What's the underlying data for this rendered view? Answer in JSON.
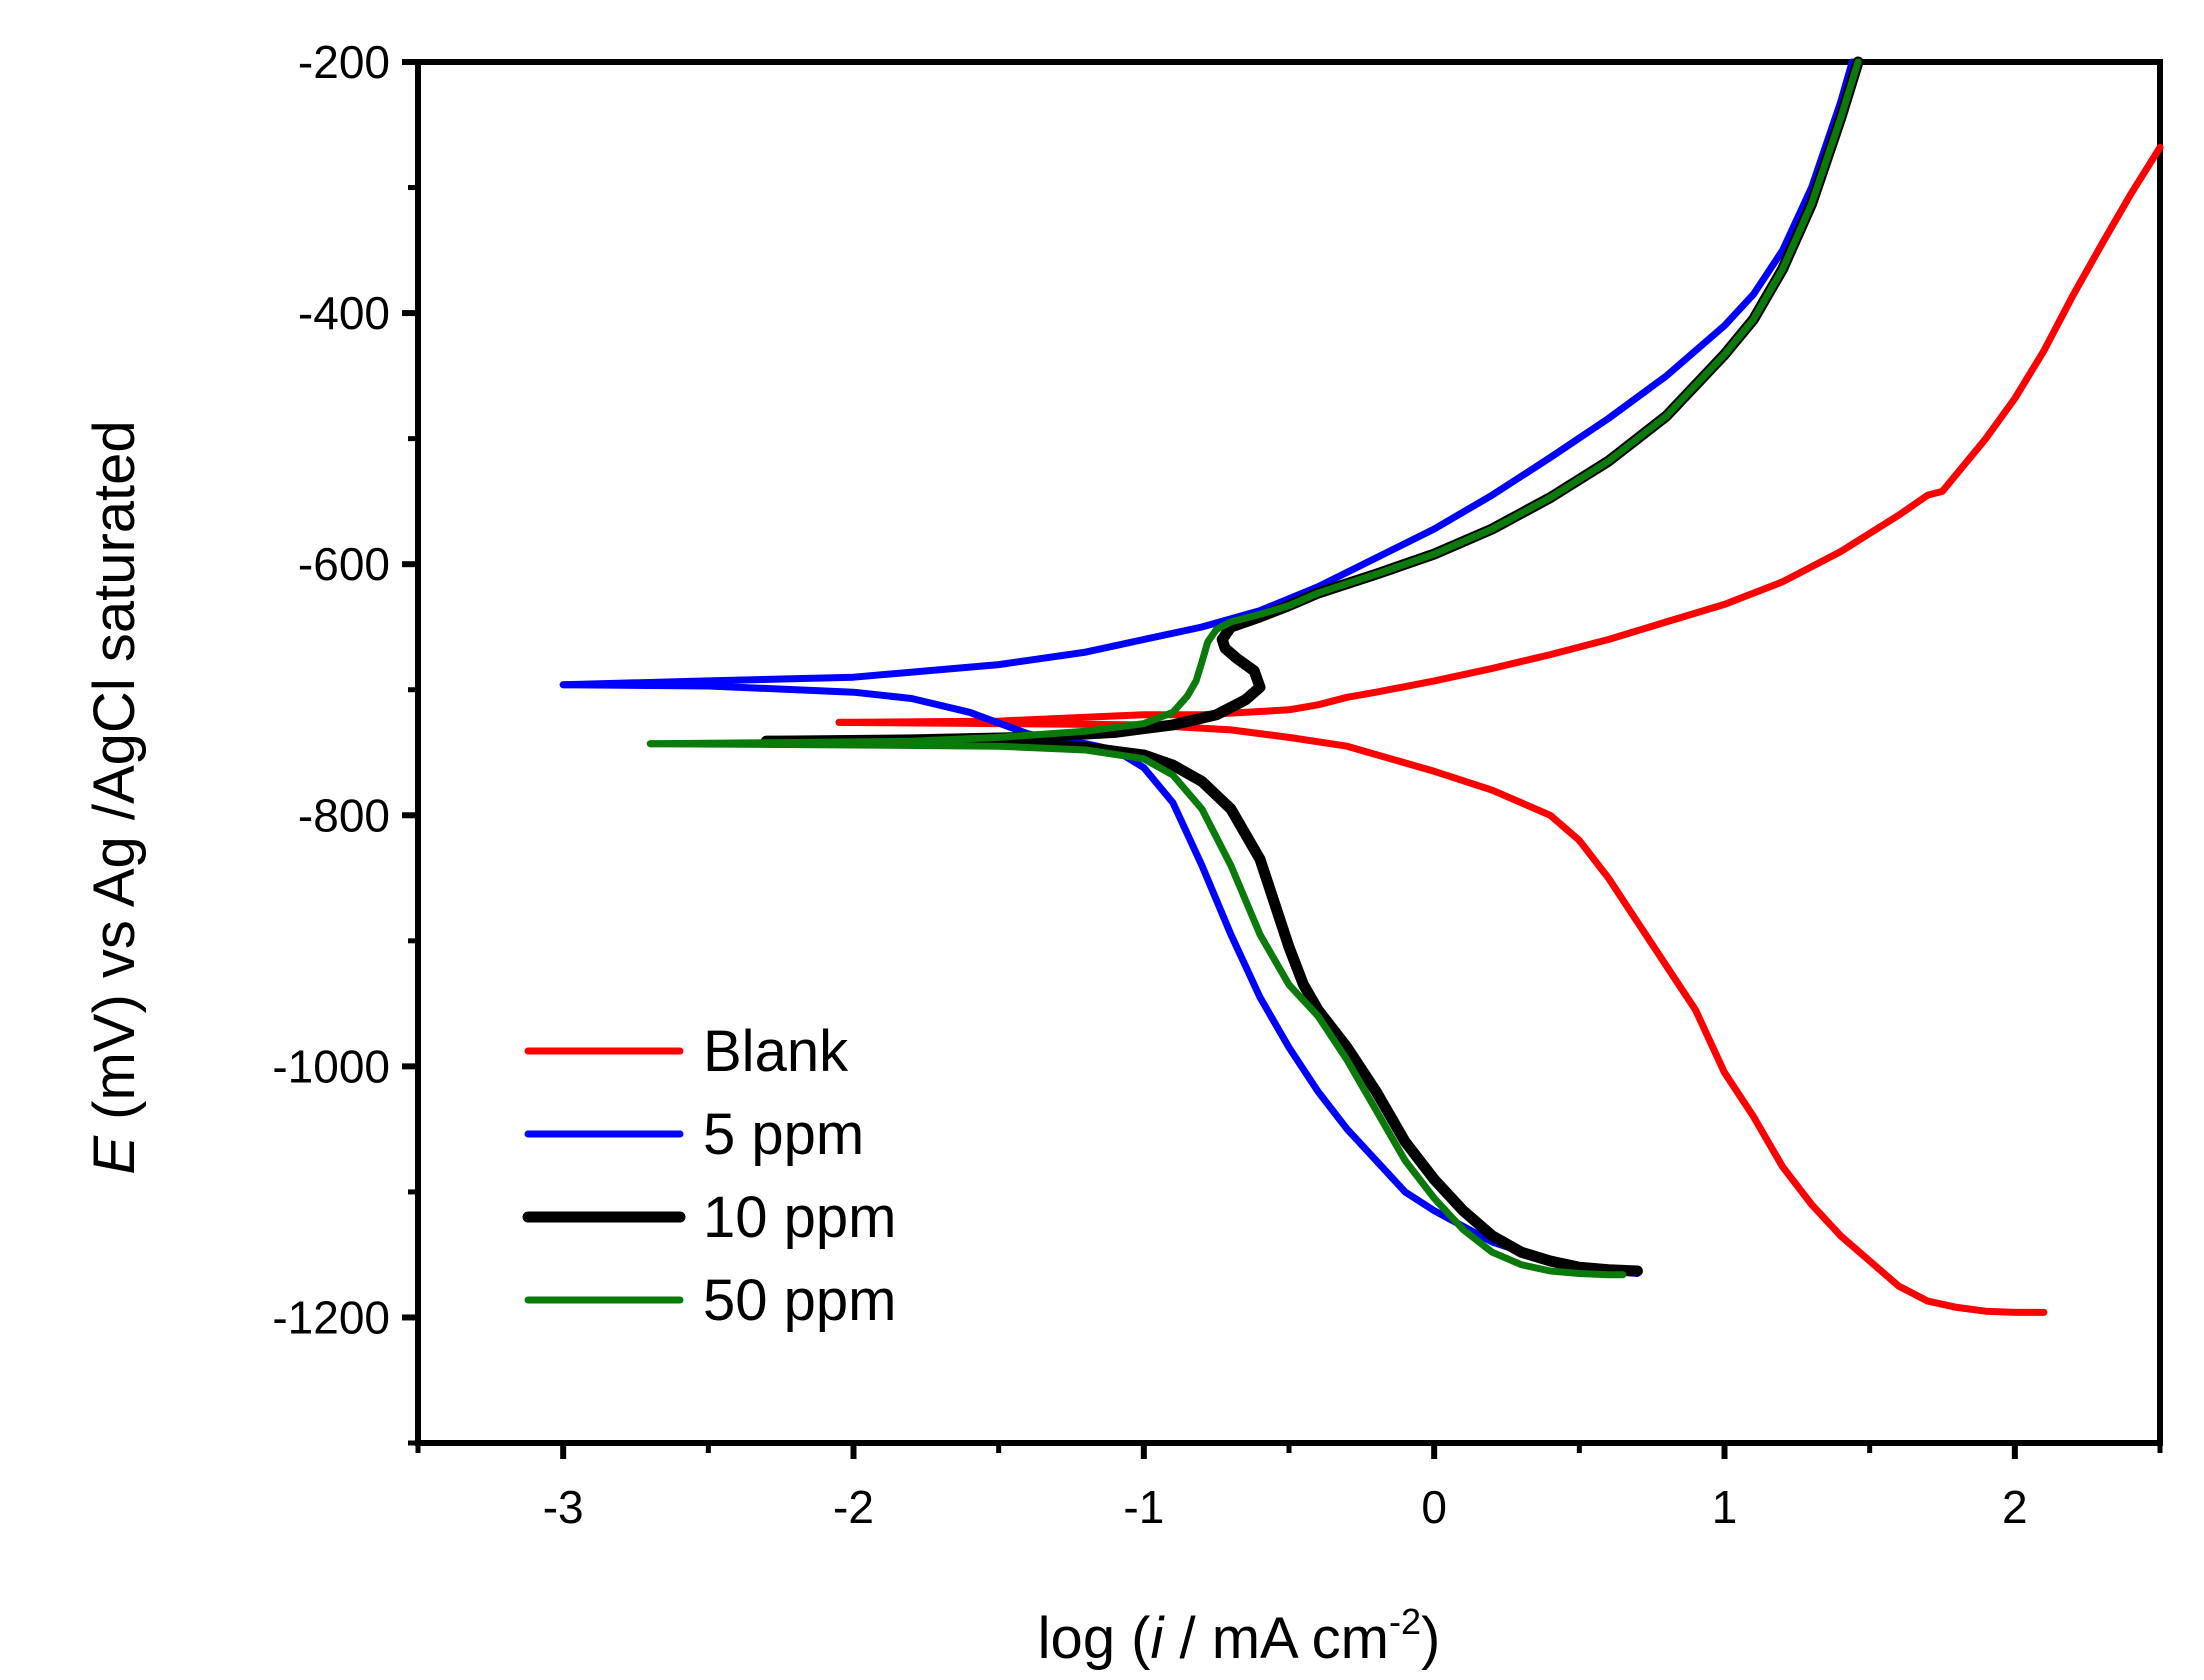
{
  "chart_data": {
    "type": "line",
    "title": "",
    "xlabel": {
      "prefix": "log (",
      "italic": "i",
      "suffix": " / mA cm",
      "sup": "-2",
      "close": ")"
    },
    "ylabel": {
      "italic": "E",
      "rest": " (mV) vs Ag /AgCl saturated"
    },
    "xlim": [
      -3.5,
      2.5
    ],
    "ylim": [
      -1300,
      -200
    ],
    "xticks": [
      -3,
      -2,
      -1,
      0,
      1,
      2
    ],
    "xtick_labels": [
      "-3",
      "-2",
      "-1",
      "0",
      "1",
      "2"
    ],
    "yticks": [
      -200,
      -400,
      -600,
      -800,
      -1000,
      -1200
    ],
    "ytick_labels": [
      "-200",
      "-400",
      "-600",
      "-800",
      "-1000",
      "-1200"
    ],
    "grid": false,
    "legend_position": "bottom-left",
    "series": [
      {
        "name": "Blank",
        "color": "#ff0000",
        "line_width": "medium",
        "anodic": [
          [
            -2.05,
            -726
          ],
          [
            -1.5,
            -725
          ],
          [
            -1.2,
            -722
          ],
          [
            -1.0,
            -720
          ],
          [
            -0.8,
            -720
          ],
          [
            -0.5,
            -716
          ],
          [
            -0.4,
            -712
          ],
          [
            -0.3,
            -706
          ],
          [
            -0.2,
            -702
          ],
          [
            0.0,
            -693
          ],
          [
            0.2,
            -683
          ],
          [
            0.4,
            -672
          ],
          [
            0.6,
            -660
          ],
          [
            0.8,
            -646
          ],
          [
            1.0,
            -632
          ],
          [
            1.2,
            -614
          ],
          [
            1.4,
            -590
          ],
          [
            1.6,
            -561
          ],
          [
            1.7,
            -545
          ],
          [
            1.75,
            -542
          ],
          [
            1.8,
            -528
          ],
          [
            1.9,
            -500
          ],
          [
            2.0,
            -468
          ],
          [
            2.1,
            -430
          ],
          [
            2.2,
            -386
          ],
          [
            2.3,
            -345
          ],
          [
            2.4,
            -305
          ],
          [
            2.5,
            -268
          ]
        ],
        "cathodic": [
          [
            -2.05,
            -726
          ],
          [
            -1.5,
            -727
          ],
          [
            -1.0,
            -728
          ],
          [
            -0.7,
            -732
          ],
          [
            -0.5,
            -738
          ],
          [
            -0.3,
            -745
          ],
          [
            0.0,
            -765
          ],
          [
            0.2,
            -780
          ],
          [
            0.4,
            -800
          ],
          [
            0.5,
            -820
          ],
          [
            0.6,
            -850
          ],
          [
            0.7,
            -885
          ],
          [
            0.8,
            -920
          ],
          [
            0.9,
            -955
          ],
          [
            1.0,
            -1005
          ],
          [
            1.1,
            -1040
          ],
          [
            1.2,
            -1080
          ],
          [
            1.3,
            -1110
          ],
          [
            1.4,
            -1135
          ],
          [
            1.5,
            -1155
          ],
          [
            1.6,
            -1175
          ],
          [
            1.7,
            -1187
          ],
          [
            1.8,
            -1192
          ],
          [
            1.9,
            -1195
          ],
          [
            2.0,
            -1196
          ],
          [
            2.1,
            -1196
          ]
        ]
      },
      {
        "name": "5 ppm",
        "color": "#0000ff",
        "line_width": "medium",
        "anodic": [
          [
            -3.0,
            -696
          ],
          [
            -2.5,
            -693
          ],
          [
            -2.0,
            -690
          ],
          [
            -1.5,
            -680
          ],
          [
            -1.2,
            -670
          ],
          [
            -1.0,
            -660
          ],
          [
            -0.8,
            -650
          ],
          [
            -0.6,
            -637
          ],
          [
            -0.4,
            -618
          ],
          [
            -0.2,
            -595
          ],
          [
            0.0,
            -572
          ],
          [
            0.2,
            -545
          ],
          [
            0.4,
            -515
          ],
          [
            0.6,
            -484
          ],
          [
            0.8,
            -450
          ],
          [
            1.0,
            -410
          ],
          [
            1.1,
            -385
          ],
          [
            1.2,
            -350
          ],
          [
            1.3,
            -300
          ],
          [
            1.4,
            -232
          ],
          [
            1.44,
            -200
          ]
        ],
        "cathodic": [
          [
            -3.0,
            -696
          ],
          [
            -2.5,
            -697
          ],
          [
            -2.0,
            -702
          ],
          [
            -1.8,
            -707
          ],
          [
            -1.6,
            -718
          ],
          [
            -1.4,
            -735
          ],
          [
            -1.3,
            -740
          ],
          [
            -1.2,
            -743
          ],
          [
            -1.1,
            -748
          ],
          [
            -1.0,
            -762
          ],
          [
            -0.9,
            -790
          ],
          [
            -0.8,
            -840
          ],
          [
            -0.7,
            -895
          ],
          [
            -0.6,
            -945
          ],
          [
            -0.5,
            -985
          ],
          [
            -0.4,
            -1020
          ],
          [
            -0.3,
            -1050
          ],
          [
            -0.2,
            -1075
          ],
          [
            -0.1,
            -1100
          ],
          [
            0.0,
            -1115
          ],
          [
            0.2,
            -1140
          ],
          [
            0.4,
            -1155
          ],
          [
            0.6,
            -1163
          ],
          [
            0.7,
            -1165
          ]
        ]
      },
      {
        "name": "10 ppm",
        "color": "#000000",
        "line_width": "thick",
        "anodic": [
          [
            -2.3,
            -741
          ],
          [
            -1.8,
            -740
          ],
          [
            -1.4,
            -738
          ],
          [
            -1.1,
            -734
          ],
          [
            -0.9,
            -728
          ],
          [
            -0.75,
            -720
          ],
          [
            -0.65,
            -708
          ],
          [
            -0.6,
            -698
          ],
          [
            -0.62,
            -685
          ],
          [
            -0.68,
            -675
          ],
          [
            -0.72,
            -667
          ],
          [
            -0.73,
            -660
          ],
          [
            -0.7,
            -650
          ],
          [
            -0.6,
            -642
          ],
          [
            -0.5,
            -633
          ],
          [
            -0.4,
            -623
          ],
          [
            -0.2,
            -608
          ],
          [
            0.0,
            -592
          ],
          [
            0.2,
            -572
          ],
          [
            0.4,
            -547
          ],
          [
            0.6,
            -518
          ],
          [
            0.8,
            -482
          ],
          [
            1.0,
            -433
          ],
          [
            1.1,
            -405
          ],
          [
            1.2,
            -365
          ],
          [
            1.3,
            -313
          ],
          [
            1.4,
            -245
          ],
          [
            1.46,
            -200
          ]
        ],
        "cathodic": [
          [
            -2.3,
            -741
          ],
          [
            -1.8,
            -742
          ],
          [
            -1.5,
            -743
          ],
          [
            -1.2,
            -746
          ],
          [
            -1.0,
            -752
          ],
          [
            -0.9,
            -760
          ],
          [
            -0.8,
            -773
          ],
          [
            -0.7,
            -795
          ],
          [
            -0.6,
            -835
          ],
          [
            -0.55,
            -870
          ],
          [
            -0.5,
            -905
          ],
          [
            -0.45,
            -935
          ],
          [
            -0.4,
            -955
          ],
          [
            -0.3,
            -985
          ],
          [
            -0.2,
            -1020
          ],
          [
            -0.1,
            -1060
          ],
          [
            0.0,
            -1090
          ],
          [
            0.1,
            -1115
          ],
          [
            0.2,
            -1135
          ],
          [
            0.3,
            -1148
          ],
          [
            0.4,
            -1155
          ],
          [
            0.5,
            -1160
          ],
          [
            0.6,
            -1162
          ],
          [
            0.7,
            -1163
          ]
        ]
      },
      {
        "name": "50 ppm",
        "color": "#0a7a0a",
        "line_width": "medium",
        "anodic": [
          [
            -2.7,
            -743
          ],
          [
            -2.2,
            -742
          ],
          [
            -1.8,
            -741
          ],
          [
            -1.5,
            -738
          ],
          [
            -1.2,
            -733
          ],
          [
            -1.0,
            -727
          ],
          [
            -0.9,
            -718
          ],
          [
            -0.85,
            -705
          ],
          [
            -0.82,
            -693
          ],
          [
            -0.8,
            -678
          ],
          [
            -0.78,
            -662
          ],
          [
            -0.75,
            -652
          ],
          [
            -0.7,
            -646
          ],
          [
            -0.6,
            -640
          ],
          [
            -0.5,
            -633
          ],
          [
            -0.4,
            -623
          ],
          [
            -0.2,
            -608
          ],
          [
            0.0,
            -592
          ],
          [
            0.2,
            -572
          ],
          [
            0.4,
            -547
          ],
          [
            0.6,
            -518
          ],
          [
            0.8,
            -482
          ],
          [
            1.0,
            -433
          ],
          [
            1.1,
            -405
          ],
          [
            1.2,
            -365
          ],
          [
            1.3,
            -313
          ],
          [
            1.4,
            -245
          ],
          [
            1.46,
            -200
          ]
        ],
        "cathodic": [
          [
            -2.7,
            -743
          ],
          [
            -2.0,
            -744
          ],
          [
            -1.5,
            -745
          ],
          [
            -1.2,
            -748
          ],
          [
            -1.0,
            -755
          ],
          [
            -0.9,
            -768
          ],
          [
            -0.8,
            -795
          ],
          [
            -0.7,
            -840
          ],
          [
            -0.6,
            -895
          ],
          [
            -0.5,
            -935
          ],
          [
            -0.4,
            -960
          ],
          [
            -0.3,
            -995
          ],
          [
            -0.2,
            -1035
          ],
          [
            -0.1,
            -1075
          ],
          [
            0.0,
            -1105
          ],
          [
            0.1,
            -1130
          ],
          [
            0.2,
            -1148
          ],
          [
            0.3,
            -1158
          ],
          [
            0.4,
            -1163
          ],
          [
            0.5,
            -1165
          ],
          [
            0.6,
            -1166
          ],
          [
            0.65,
            -1166
          ]
        ]
      }
    ]
  }
}
